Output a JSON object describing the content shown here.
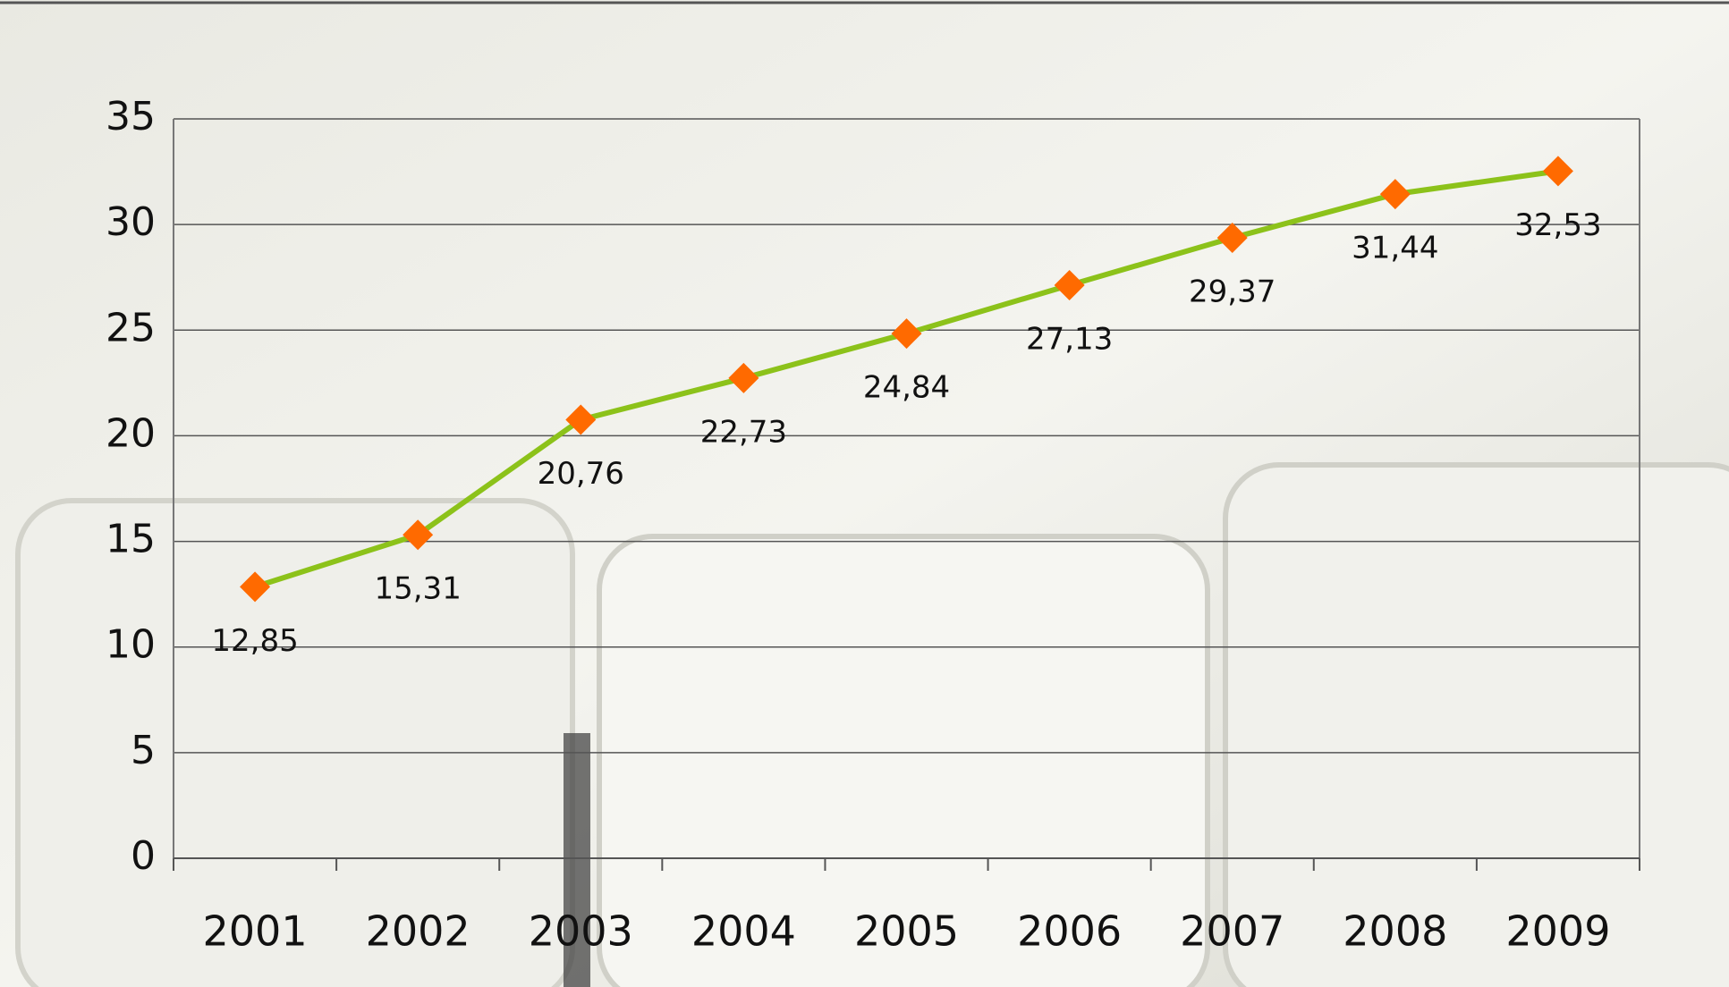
{
  "chart_data": {
    "type": "line",
    "categories": [
      "2001",
      "2002",
      "2003",
      "2004",
      "2005",
      "2006",
      "2007",
      "2008",
      "2009"
    ],
    "series": [
      {
        "color": "#8cc21a",
        "marker_color": "#ff6a00",
        "values": [
          12.85,
          15.31,
          20.76,
          22.73,
          24.84,
          27.13,
          29.37,
          31.44,
          32.53
        ],
        "value_labels": [
          "12,85",
          "15,31",
          "20,76",
          "22,73",
          "24,84",
          "27,13",
          "29,37",
          "31,44",
          "32,53"
        ]
      }
    ],
    "ylim": [
      0,
      35
    ],
    "yticks": [
      0,
      5,
      10,
      15,
      20,
      25,
      30,
      35
    ],
    "grid": true
  }
}
